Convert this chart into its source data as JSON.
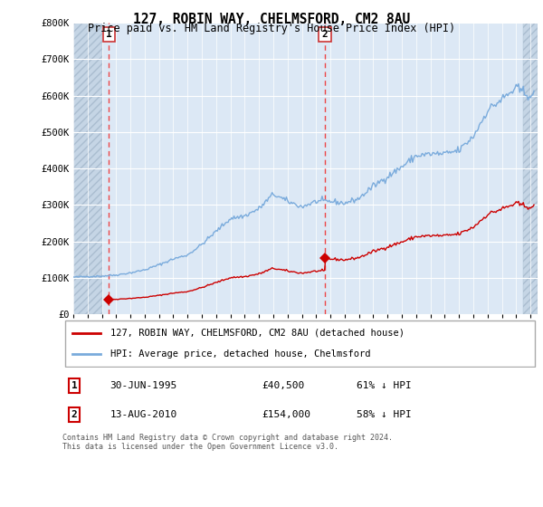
{
  "title": "127, ROBIN WAY, CHELMSFORD, CM2 8AU",
  "subtitle": "Price paid vs. HM Land Registry's House Price Index (HPI)",
  "background_color": "#ffffff",
  "plot_bg_color": "#dce8f5",
  "hatch_bg_color": "#c5d5e5",
  "grid_color": "#b8c8d8",
  "ylim": [
    0,
    800000
  ],
  "yticks": [
    0,
    100000,
    200000,
    300000,
    400000,
    500000,
    600000,
    700000,
    800000
  ],
  "ytick_labels": [
    "£0",
    "£100K",
    "£200K",
    "£300K",
    "£400K",
    "£500K",
    "£600K",
    "£700K",
    "£800K"
  ],
  "sale1_date": 1995.5,
  "sale1_price": 40500,
  "sale1_label": "1",
  "sale2_date": 2010.6,
  "sale2_price": 154000,
  "sale2_label": "2",
  "hpi_line_color": "#7aabdc",
  "price_line_color": "#cc0000",
  "dashed_line_color": "#ee3333",
  "legend_label_red": "127, ROBIN WAY, CHELMSFORD, CM2 8AU (detached house)",
  "legend_label_blue": "HPI: Average price, detached house, Chelmsford",
  "footer": "Contains HM Land Registry data © Crown copyright and database right 2024.\nThis data is licensed under the Open Government Licence v3.0.",
  "table_row1": [
    "1",
    "30-JUN-1995",
    "£40,500",
    "61% ↓ HPI"
  ],
  "table_row2": [
    "2",
    "13-AUG-2010",
    "£154,000",
    "58% ↓ HPI"
  ],
  "xmin": 1993,
  "xmax": 2025.5,
  "hatch_left_end": 1995.0,
  "hatch_right_start": 2024.5
}
